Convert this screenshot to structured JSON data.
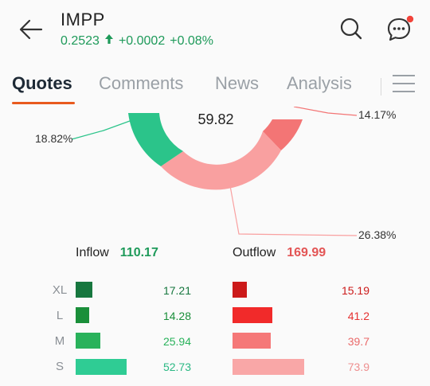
{
  "header": {
    "ticker": "IMPP",
    "price": "0.2523",
    "change": "+0.0002",
    "change_pct": "+0.08%",
    "trend_icon": "arrow-up-icon",
    "accent_green": "#1e9a5a"
  },
  "tabs": [
    {
      "label": "Quotes",
      "active": true
    },
    {
      "label": "Comments",
      "active": false
    },
    {
      "label": "News",
      "active": false
    },
    {
      "label": "Analysis",
      "active": false
    }
  ],
  "chart_data": {
    "type": "pie",
    "center_value": "59.82",
    "slices": [
      {
        "label": "18.82%",
        "value": 18.82,
        "color": "#2bc48a"
      },
      {
        "label": "26.38%",
        "value": 26.38,
        "color": "#f9a0a0"
      },
      {
        "label": "14.17%",
        "value": 14.17,
        "color": "#f37575"
      }
    ]
  },
  "flows": {
    "inflow_label": "Inflow",
    "inflow_total": "110.17",
    "outflow_label": "Outflow",
    "outflow_total": "169.99",
    "rows": [
      {
        "size": "XL",
        "inflow": "17.21",
        "outflow": "15.19",
        "in_color": "#17773f",
        "out_color": "#cc1a1a"
      },
      {
        "size": "L",
        "inflow": "14.28",
        "outflow": "41.2",
        "in_color": "#1a8f3a",
        "out_color": "#f12a2a"
      },
      {
        "size": "M",
        "inflow": "25.94",
        "outflow": "39.7",
        "in_color": "#29b25b",
        "out_color": "#f57878"
      },
      {
        "size": "S",
        "inflow": "52.73",
        "outflow": "73.9",
        "in_color": "#2fcc94",
        "out_color": "#f9a7a7"
      }
    ]
  }
}
